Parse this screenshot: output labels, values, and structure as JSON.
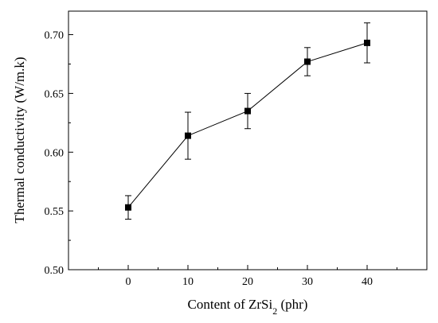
{
  "chart_data": {
    "type": "line",
    "xlabel": "Content of ZrSi",
    "xlabel_sub": "2",
    "xlabel_suffix": " (phr)",
    "ylabel": "Thermal conductivity (W/m.k)",
    "x": [
      0,
      10,
      20,
      30,
      40
    ],
    "y": [
      0.553,
      0.614,
      0.635,
      0.677,
      0.693
    ],
    "err": [
      0.01,
      0.02,
      0.015,
      0.012,
      0.017
    ],
    "xlim": [
      -10,
      50
    ],
    "ylim": [
      0.5,
      0.72
    ],
    "xticks": [
      "0",
      "10",
      "20",
      "30",
      "40"
    ],
    "yticks": [
      "0.50",
      "0.55",
      "0.60",
      "0.65",
      "0.70"
    ],
    "marker": "square",
    "grid": false,
    "legend": "none",
    "color": "#000000"
  }
}
